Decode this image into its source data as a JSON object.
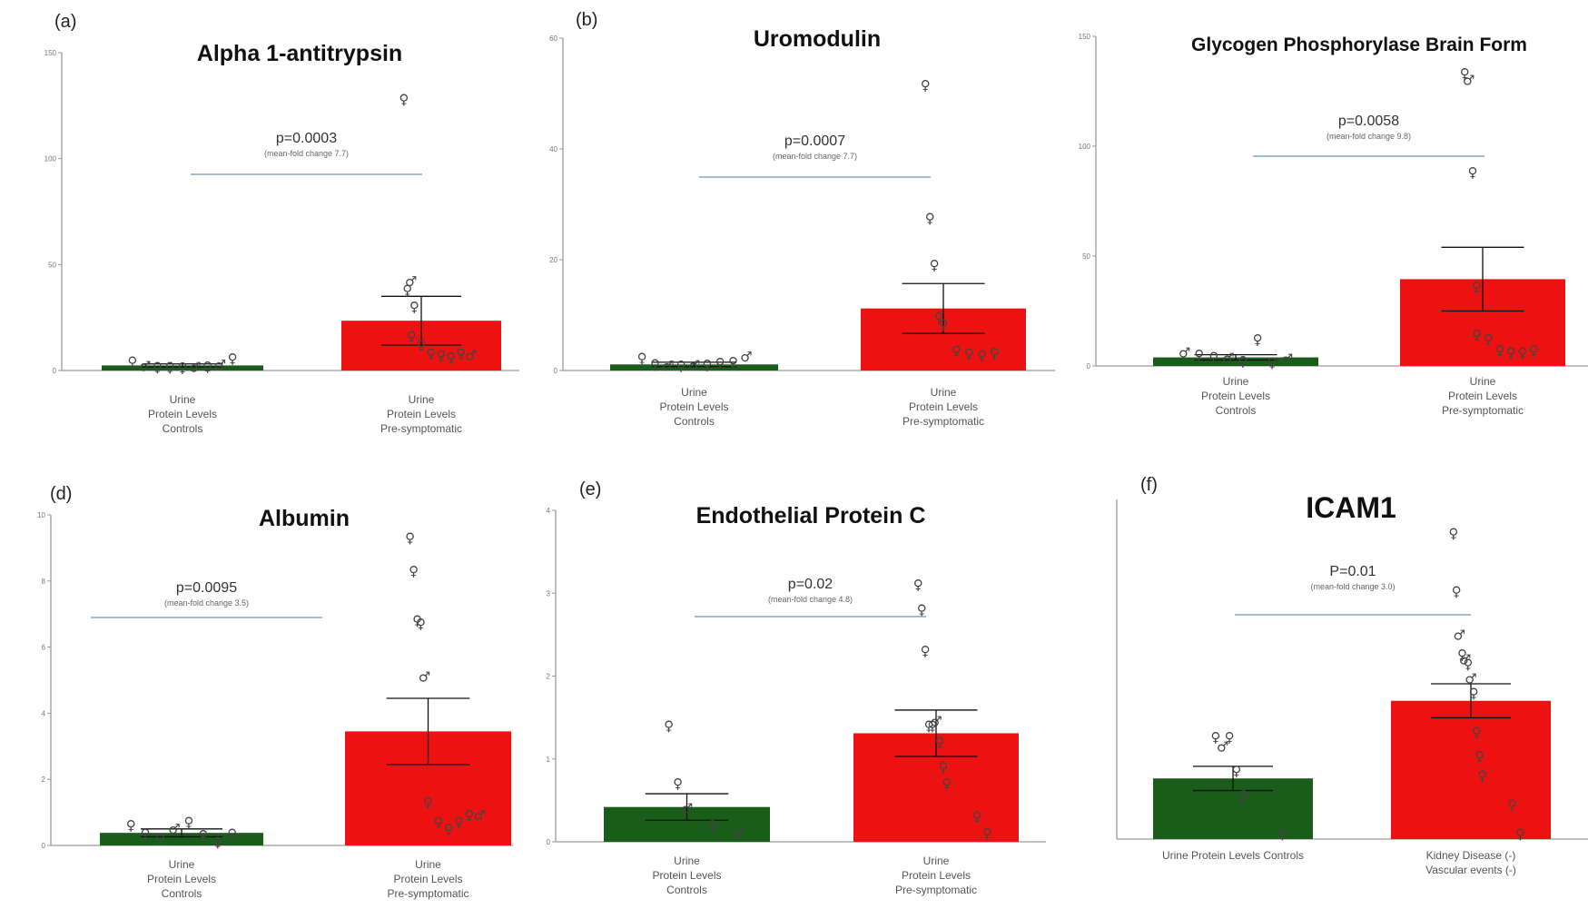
{
  "chart_data": [
    {
      "type": "bar",
      "panel": "(a)",
      "title": "Alpha 1-antitrypsin",
      "p_value": "p=0.0003",
      "note": "(mean-fold change 7.7)",
      "categories": [
        [
          "Urine",
          "Protein Levels",
          "Controls"
        ],
        [
          "Urine",
          "Protein Levels",
          "Pre-symptomatic"
        ]
      ],
      "values": [
        2.4,
        23.5
      ],
      "errors": [
        0.7,
        11.5
      ],
      "ylim": [
        0,
        150
      ],
      "yticks": [
        0,
        50,
        100,
        150
      ],
      "ylabel": "",
      "colors": [
        "#1a5c1a",
        "#ee1111"
      ],
      "points": [
        [
          [
            "f",
            4
          ],
          [
            "m",
            2
          ],
          [
            "f",
            1.5
          ],
          [
            "f",
            1.4
          ],
          [
            "f",
            1.3
          ],
          [
            "m",
            1.6
          ],
          [
            "f",
            1.8
          ],
          [
            "m",
            2.5
          ],
          [
            "f",
            5.5
          ]
        ],
        [
          [
            "f",
            128
          ],
          [
            "f",
            38
          ],
          [
            "m",
            42
          ],
          [
            "f",
            30
          ],
          [
            "f",
            16
          ],
          [
            "f",
            12
          ],
          [
            "f",
            8
          ],
          [
            "f",
            7
          ],
          [
            "f",
            6
          ],
          [
            "f",
            8
          ],
          [
            "m",
            7
          ]
        ]
      ]
    },
    {
      "type": "bar",
      "panel": "(b)",
      "title": "Uromodulin",
      "p_value": "p=0.0007",
      "note": "(mean-fold change 7.7)",
      "categories": [
        [
          "Urine",
          "Protein Levels",
          "Controls"
        ],
        [
          "Urine",
          "Protein Levels",
          "Pre-symptomatic"
        ]
      ],
      "values": [
        1.1,
        11.2
      ],
      "errors": [
        0.4,
        4.5
      ],
      "ylim": [
        0,
        60
      ],
      "yticks": [
        0,
        20,
        40,
        60
      ],
      "ylabel": "",
      "colors": [
        "#1a5c1a",
        "#ee1111"
      ],
      "points": [
        [
          [
            "f",
            2.2
          ],
          [
            "f",
            1.1
          ],
          [
            "m",
            0.8
          ],
          [
            "f",
            0.8
          ],
          [
            "m",
            0.9
          ],
          [
            "f",
            1.0
          ],
          [
            "f",
            1.3
          ],
          [
            "f",
            1.5
          ],
          [
            "m",
            2.5
          ]
        ],
        [
          [
            "f",
            51.5
          ],
          [
            "f",
            27.5
          ],
          [
            "f",
            19
          ],
          [
            "f",
            9.5
          ],
          [
            "f",
            8.3
          ],
          [
            "f",
            3.5
          ],
          [
            "f",
            3
          ],
          [
            "f",
            2.7
          ],
          [
            "f",
            3.1
          ]
        ]
      ]
    },
    {
      "type": "bar",
      "panel": "",
      "title": "Glycogen Phosphorylase Brain Form",
      "p_value": "p=0.0058",
      "note": "(mean-fold change 9.8)",
      "categories": [
        [
          "Urine",
          "Protein Levels",
          "Controls"
        ],
        [
          "Urine",
          "Protein Levels",
          "Pre-symptomatic"
        ]
      ],
      "values": [
        3.9,
        39.5
      ],
      "errors": [
        1.2,
        14.5
      ],
      "ylim": [
        0,
        150
      ],
      "yticks": [
        0,
        50,
        100,
        150
      ],
      "ylabel": "",
      "colors": [
        "#1a5c1a",
        "#ee1111"
      ],
      "points": [
        [
          [
            "m",
            6
          ],
          [
            "f",
            5
          ],
          [
            "f",
            4
          ],
          [
            "m",
            3.5
          ],
          [
            "f",
            2
          ],
          [
            "f",
            12
          ],
          [
            "f",
            1.5
          ],
          [
            "m",
            3
          ]
        ],
        [
          [
            "f",
            133
          ],
          [
            "m",
            130
          ],
          [
            "f",
            88
          ],
          [
            "f",
            36
          ],
          [
            "f",
            14
          ],
          [
            "f",
            12
          ],
          [
            "f",
            7
          ],
          [
            "f",
            6
          ],
          [
            "f",
            6
          ],
          [
            "f",
            7
          ]
        ]
      ]
    },
    {
      "type": "bar",
      "panel": "(d)",
      "title": "Albumin",
      "p_value": "p=0.0095",
      "note": "(mean-fold change 3.5)",
      "categories": [
        [
          "Urine",
          "Protein Levels",
          "Controls"
        ],
        [
          "Urine",
          "Protein Levels",
          "Pre-symptomatic"
        ]
      ],
      "values": [
        0.38,
        3.45
      ],
      "errors": [
        0.12,
        1.0
      ],
      "ylim": [
        0,
        10
      ],
      "yticks": [
        0,
        2,
        4,
        6,
        8,
        10
      ],
      "ylabel": "",
      "colors": [
        "#1a5c1a",
        "#ee1111"
      ],
      "points": [
        [
          [
            "f",
            0.6
          ],
          [
            "f",
            0.35
          ],
          [
            "f",
            0.2
          ],
          [
            "m",
            0.5
          ],
          [
            "f",
            0.7
          ],
          [
            "f",
            0.3
          ],
          [
            "f",
            0.1
          ],
          [
            "f",
            0.35
          ]
        ],
        [
          [
            "f",
            9.3
          ],
          [
            "f",
            8.3
          ],
          [
            "f",
            6.8
          ],
          [
            "f",
            6.7
          ],
          [
            "m",
            5.1
          ],
          [
            "f",
            1.3
          ],
          [
            "f",
            0.7
          ],
          [
            "f",
            0.5
          ],
          [
            "f",
            0.7
          ],
          [
            "f",
            0.9
          ],
          [
            "m",
            0.9
          ]
        ]
      ]
    },
    {
      "type": "bar",
      "panel": "(e)",
      "title": "Endothelial Protein C",
      "p_value": "p=0.02",
      "note": "(mean-fold change 4.8)",
      "categories": [
        [
          "Urine",
          "Protein Levels",
          "Controls"
        ],
        [
          "Urine",
          "Protein Levels",
          "Pre-symptomatic"
        ]
      ],
      "values": [
        0.42,
        1.31
      ],
      "errors": [
        0.16,
        0.28
      ],
      "ylim": [
        0,
        4
      ],
      "yticks": [
        0,
        1,
        2,
        3,
        4
      ],
      "ylabel": "",
      "colors": [
        "#1a5c1a",
        "#ee1111"
      ],
      "points": [
        [
          [
            "f",
            1.4
          ],
          [
            "f",
            0.7
          ],
          [
            "m",
            0.4
          ],
          [
            "f",
            0.2
          ],
          [
            "m",
            0.1
          ]
        ],
        [
          [
            "f",
            3.1
          ],
          [
            "f",
            2.8
          ],
          [
            "f",
            2.3
          ],
          [
            "f",
            1.4
          ],
          [
            "f",
            1.4
          ],
          [
            "m",
            1.45
          ],
          [
            "f",
            1.2
          ],
          [
            "f",
            0.9
          ],
          [
            "f",
            0.7
          ],
          [
            "f",
            0.3
          ],
          [
            "f",
            0.1
          ]
        ]
      ]
    },
    {
      "type": "bar",
      "panel": "(f)",
      "title": "ICAM1",
      "p_value": "P=0.01",
      "note": "(mean-fold change 3.0)",
      "categories": [
        [
          "Urine Protein Levels Controls"
        ],
        [
          "Kidney Disease (-)",
          "Vascular events (-)"
        ]
      ],
      "values": [
        1.25,
        2.85
      ],
      "errors": [
        0.25,
        0.35
      ],
      "ylim": [
        0,
        7
      ],
      "yticks": [],
      "ylabel": "",
      "colors": [
        "#1a5c1a",
        "#ee1111"
      ],
      "points": [
        [
          [
            "f",
            2.1
          ],
          [
            "m",
            1.9
          ],
          [
            "f",
            2.1
          ],
          [
            "f",
            1.4
          ],
          [
            "f",
            0.9
          ],
          [
            "f",
            0.1
          ]
        ],
        [
          [
            "f",
            6.3
          ],
          [
            "f",
            5.1
          ],
          [
            "m",
            4.2
          ],
          [
            "f",
            3.8
          ],
          [
            "m",
            3.7
          ],
          [
            "f",
            3.6
          ],
          [
            "m",
            3.3
          ],
          [
            "f",
            3.0
          ],
          [
            "f",
            2.2
          ],
          [
            "f",
            1.7
          ],
          [
            "f",
            1.3
          ],
          [
            "f",
            0.7
          ],
          [
            "f",
            0.1
          ]
        ]
      ]
    }
  ]
}
